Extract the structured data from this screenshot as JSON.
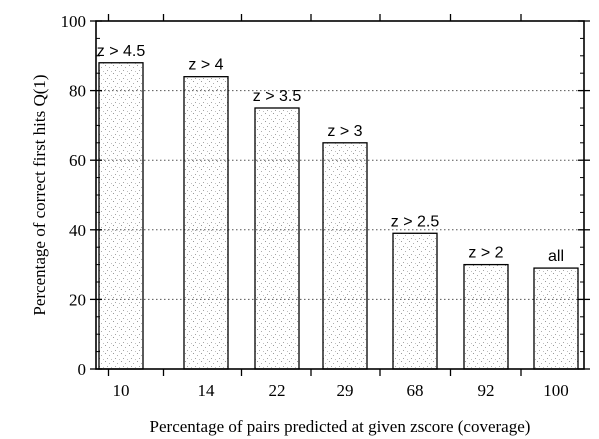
{
  "chart_data": {
    "type": "bar",
    "title": "",
    "xlabel": "Percentage of pairs predicted at given zscore (coverage)",
    "ylabel": "Percentage of correct first hits Q(1)",
    "categories": [
      "10",
      "14",
      "22",
      "29",
      "68",
      "92",
      "100"
    ],
    "values": [
      88,
      84,
      75,
      65,
      39,
      30,
      29
    ],
    "bar_labels": [
      "z > 4.5",
      "z > 4",
      "z > 3.5",
      "z > 3",
      "z > 2.5",
      "z > 2",
      "all"
    ],
    "ylim": [
      0,
      100
    ],
    "yticks": [
      "0",
      "20",
      "40",
      "60",
      "80",
      "100"
    ],
    "grid": "horizontal dotted",
    "legend": "none"
  }
}
